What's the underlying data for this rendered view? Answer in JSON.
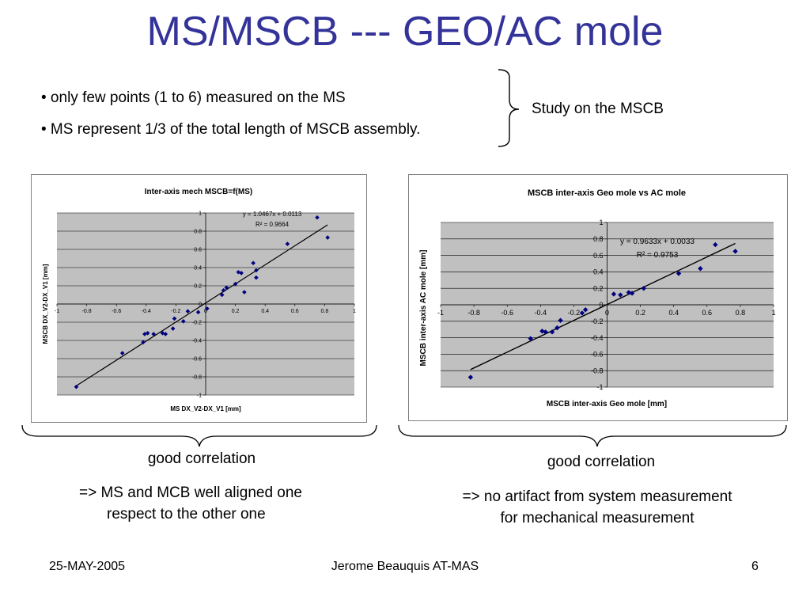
{
  "slide": {
    "title": "MS/MSCB --- GEO/AC mole",
    "bullets": [
      "• only few points (1 to 6)  measured on the MS",
      "• MS represent 1/3 of the total length of MSCB assembly."
    ],
    "brace_note": "Study on the MSCB"
  },
  "charts": [
    {
      "title": "Inter-axis mech MSCB=f(MS)",
      "xlabel": "MS DX_V2-DX_V1 [mm]",
      "ylabel": "MSCB DX_V2-DX_V1 [mm]",
      "equation": "y = 1.0467x + 0.0113",
      "r2": "R² = 0.9664",
      "x_ticks": [
        "-1",
        "-0.8",
        "-0.6",
        "-0.4",
        "-0.2",
        "0",
        "0.2",
        "0.4",
        "0.6",
        "0.8",
        "1"
      ],
      "y_ticks": [
        "1",
        "0.8",
        "0.6",
        "0.4",
        "0.2",
        "0",
        "-0.2",
        "-0.4",
        "-0.6",
        "-0.8",
        "-1"
      ]
    },
    {
      "title": "MSCB inter-axis Geo mole vs AC mole",
      "xlabel": "MSCB inter-axis Geo mole [mm]",
      "ylabel": "MSCB inter-axis AC mole [mm]",
      "equation": "y = 0.9633x + 0.0033",
      "r2": "R² = 0.9753",
      "x_ticks": [
        "-1",
        "-0.8",
        "-0.6",
        "-0.4",
        "-0.2",
        "0",
        "0.2",
        "0.4",
        "0.6",
        "0.8",
        "1"
      ],
      "y_ticks": [
        "1",
        "0.8",
        "0.6",
        "0.4",
        "0.2",
        "0",
        "-0.2",
        "-0.4",
        "-0.6",
        "-0.8",
        "-1"
      ]
    }
  ],
  "captions": {
    "left": "good correlation",
    "left_note": [
      "=> MS and MCB well aligned one",
      "respect to the other one"
    ],
    "right": "good correlation",
    "right_note": [
      "=> no artifact from system measurement",
      "for mechanical measurement"
    ]
  },
  "footer": {
    "date": "25-MAY-2005",
    "author": "Jerome Beauquis AT-MAS",
    "page": "6"
  },
  "colors": {
    "title": "#333399",
    "plot_area": "#c0c0c0",
    "marker": "#000080"
  },
  "chart_data": [
    {
      "type": "scatter",
      "title": "Inter-axis mech MSCB=f(MS)",
      "xlabel": "MS DX_V2-DX_V1 [mm]",
      "ylabel": "MSCB DX_V2-DX_V1 [mm]",
      "xlim": [
        -1,
        1
      ],
      "ylim": [
        -1,
        1
      ],
      "grid": "horizontal",
      "trendline": {
        "slope": 1.0467,
        "intercept": 0.0113,
        "r2": 0.9664
      },
      "points": [
        [
          -0.87,
          -0.91
        ],
        [
          -0.56,
          -0.54
        ],
        [
          -0.42,
          -0.42
        ],
        [
          -0.41,
          -0.33
        ],
        [
          -0.39,
          -0.32
        ],
        [
          -0.35,
          -0.33
        ],
        [
          -0.29,
          -0.32
        ],
        [
          -0.27,
          -0.33
        ],
        [
          -0.22,
          -0.27
        ],
        [
          -0.21,
          -0.16
        ],
        [
          -0.15,
          -0.19
        ],
        [
          -0.12,
          -0.08
        ],
        [
          -0.05,
          -0.09
        ],
        [
          0.01,
          -0.05
        ],
        [
          0.11,
          0.1
        ],
        [
          0.12,
          0.15
        ],
        [
          0.14,
          0.18
        ],
        [
          0.2,
          0.22
        ],
        [
          0.22,
          0.35
        ],
        [
          0.24,
          0.34
        ],
        [
          0.26,
          0.13
        ],
        [
          0.32,
          0.45
        ],
        [
          0.34,
          0.37
        ],
        [
          0.34,
          0.29
        ],
        [
          0.55,
          0.66
        ],
        [
          0.75,
          0.95
        ],
        [
          0.82,
          0.73
        ]
      ]
    },
    {
      "type": "scatter",
      "title": "MSCB inter-axis Geo mole vs AC mole",
      "xlabel": "MSCB inter-axis Geo mole [mm]",
      "ylabel": "MSCB inter-axis AC mole [mm]",
      "xlim": [
        -1,
        1
      ],
      "ylim": [
        -1,
        1
      ],
      "grid": "horizontal",
      "trendline": {
        "slope": 0.9633,
        "intercept": 0.0033,
        "r2": 0.9753
      },
      "points": [
        [
          -0.82,
          -0.88
        ],
        [
          -0.46,
          -0.41
        ],
        [
          -0.39,
          -0.32
        ],
        [
          -0.37,
          -0.33
        ],
        [
          -0.33,
          -0.33
        ],
        [
          -0.3,
          -0.28
        ],
        [
          -0.28,
          -0.19
        ],
        [
          -0.15,
          -0.1
        ],
        [
          -0.13,
          -0.06
        ],
        [
          0.04,
          0.13
        ],
        [
          0.08,
          0.12
        ],
        [
          0.13,
          0.15
        ],
        [
          0.15,
          0.14
        ],
        [
          0.22,
          0.2
        ],
        [
          0.43,
          0.38
        ],
        [
          0.56,
          0.44
        ],
        [
          0.65,
          0.73
        ],
        [
          0.77,
          0.65
        ]
      ]
    }
  ]
}
